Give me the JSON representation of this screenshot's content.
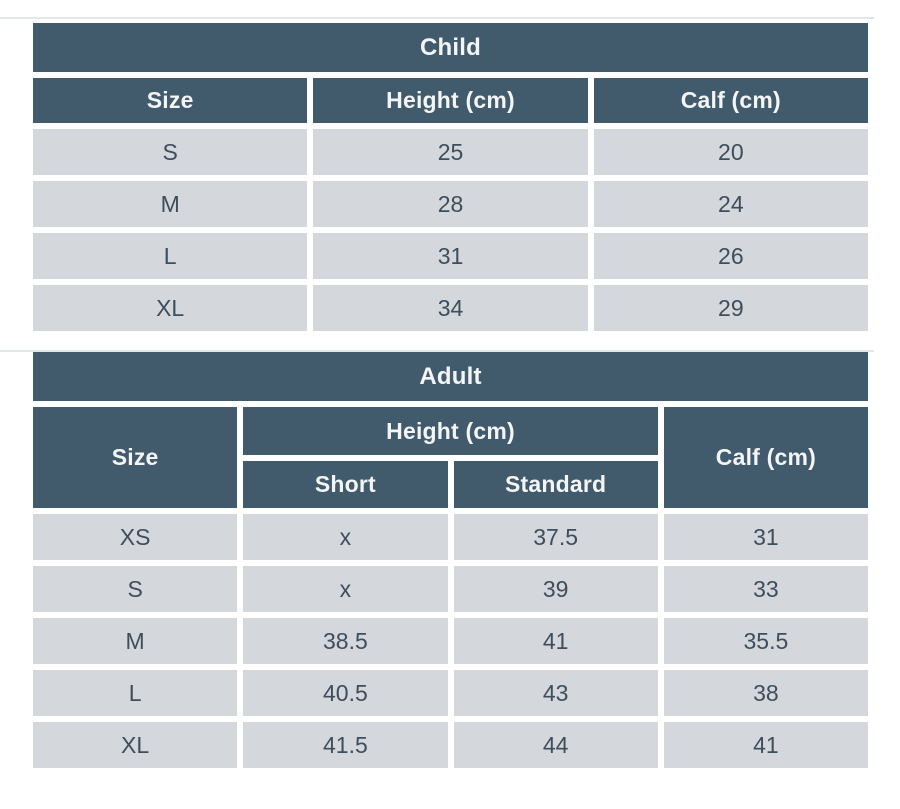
{
  "colors": {
    "header_background": "#415a6c",
    "header_text": "#f3f5f7",
    "cell_background": "#d4d7db",
    "cell_text": "#3e4e5c",
    "divider_line": "#e4e7ea",
    "page_background": "#ffffff"
  },
  "chart_data": [
    {
      "type": "table",
      "title": "Child",
      "columns": [
        "Size",
        "Height (cm)",
        "Calf (cm)"
      ],
      "rows": [
        [
          "S",
          25,
          20
        ],
        [
          "M",
          28,
          24
        ],
        [
          "L",
          31,
          26
        ],
        [
          "XL",
          34,
          29
        ]
      ]
    },
    {
      "type": "table",
      "title": "Adult",
      "columns": [
        "Size",
        "Short",
        "Standard",
        "Calf (cm)"
      ],
      "column_group": {
        "label": "Height (cm)",
        "spans": [
          "Short",
          "Standard"
        ]
      },
      "rows": [
        [
          "XS",
          "x",
          37.5,
          31
        ],
        [
          "S",
          "x",
          39,
          33
        ],
        [
          "M",
          38.5,
          41,
          35.5
        ],
        [
          "L",
          40.5,
          43,
          38
        ],
        [
          "XL",
          41.5,
          44,
          41
        ]
      ]
    }
  ]
}
